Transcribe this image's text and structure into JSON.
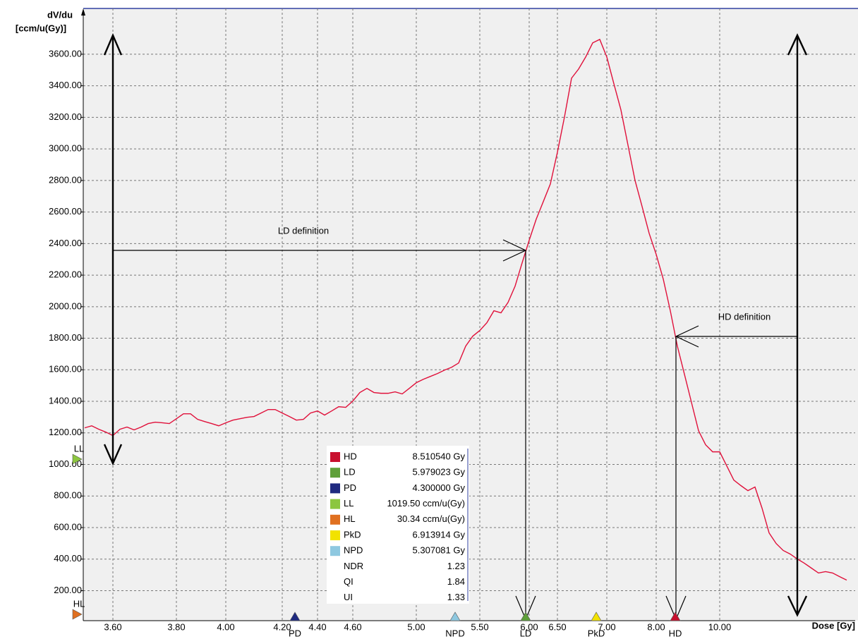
{
  "chart_data": {
    "type": "line",
    "y_title": "dV/du",
    "y_unit": "[ccm/u(Gy)]",
    "x_title": "Dose [Gy]",
    "ylim": [
      10,
      3890
    ],
    "yticks": [
      {
        "value": 200,
        "label": "200.00"
      },
      {
        "value": 400,
        "label": "400.00"
      },
      {
        "value": 600,
        "label": "600.00"
      },
      {
        "value": 800,
        "label": "800.00"
      },
      {
        "value": 1000,
        "label": "1000.00"
      },
      {
        "value": 1200,
        "label": "1200.00"
      },
      {
        "value": 1400,
        "label": "1400.00"
      },
      {
        "value": 1600,
        "label": "1600.00"
      },
      {
        "value": 1800,
        "label": "1800.00"
      },
      {
        "value": 2000,
        "label": "2000.00"
      },
      {
        "value": 2200,
        "label": "2200.00"
      },
      {
        "value": 2400,
        "label": "2400.00"
      },
      {
        "value": 2600,
        "label": "2600.00"
      },
      {
        "value": 2800,
        "label": "2800.00"
      },
      {
        "value": 3000,
        "label": "3000.00"
      },
      {
        "value": 3200,
        "label": "3200.00"
      },
      {
        "value": 3400,
        "label": "3400.00"
      },
      {
        "value": 3600,
        "label": "3600.00"
      }
    ],
    "grid": true,
    "categories": [
      null,
      null,
      null,
      null,
      "3.60",
      null,
      null,
      null,
      null,
      null,
      null,
      null,
      null,
      "3.80",
      null,
      null,
      null,
      null,
      null,
      null,
      "4.00",
      null,
      null,
      null,
      null,
      null,
      null,
      null,
      "4.20",
      null,
      null,
      null,
      null,
      "4.40",
      null,
      null,
      null,
      null,
      "4.60",
      null,
      null,
      null,
      null,
      null,
      null,
      null,
      null,
      "5.00",
      null,
      null,
      null,
      null,
      null,
      null,
      null,
      null,
      "5.50",
      null,
      null,
      null,
      null,
      null,
      null,
      "6.00",
      null,
      null,
      null,
      "6.50",
      null,
      null,
      null,
      null,
      null,
      null,
      "7.00",
      null,
      null,
      null,
      null,
      null,
      null,
      "8.00",
      null,
      null,
      null,
      null,
      null,
      null,
      null,
      null,
      "10.00",
      null,
      null,
      null,
      null,
      null,
      null,
      null,
      null,
      null,
      null,
      null,
      null,
      null,
      null,
      null,
      null,
      null,
      null
    ],
    "series": [
      {
        "name": "dV/du",
        "color": "#e0103a",
        "values": [
          1232,
          1245,
          1223,
          1205,
          1183,
          1223,
          1237,
          1219,
          1237,
          1259,
          1268,
          1264,
          1259,
          1290,
          1321,
          1321,
          1286,
          1272,
          1259,
          1245,
          1264,
          1281,
          1290,
          1299,
          1304,
          1326,
          1348,
          1348,
          1326,
          1304,
          1281,
          1286,
          1326,
          1339,
          1313,
          1339,
          1366,
          1362,
          1402,
          1456,
          1482,
          1456,
          1451,
          1451,
          1460,
          1447,
          1482,
          1518,
          1540,
          1558,
          1576,
          1598,
          1616,
          1643,
          1750,
          1813,
          1849,
          1898,
          1974,
          1961,
          2027,
          2130,
          2278,
          2421,
          2555,
          2666,
          2778,
          2979,
          3202,
          3448,
          3506,
          3582,
          3672,
          3694,
          3582,
          3413,
          3247,
          3024,
          2800,
          2635,
          2465,
          2331,
          2175,
          1974,
          1750,
          1572,
          1393,
          1214,
          1125,
          1080,
          1080,
          991,
          901,
          866,
          834,
          857,
          723,
          566,
          499,
          455,
          432,
          401,
          374,
          343,
          312,
          321,
          312,
          289,
          267
        ]
      }
    ],
    "annotations": [
      "LD definition",
      "HD definition"
    ],
    "markers": [
      {
        "name": "HD",
        "color": "#c8102e",
        "readout": "8.510540 Gy"
      },
      {
        "name": "LD",
        "color": "#5fa03a",
        "readout": "5.979023 Gy"
      },
      {
        "name": "PD",
        "color": "#1f2a80",
        "readout": "4.300000 Gy"
      },
      {
        "name": "LL",
        "color": "#8cc63f",
        "readout": "1019.50 ccm/u(Gy)"
      },
      {
        "name": "HL",
        "color": "#e07020",
        "readout": "30.34 ccm/u(Gy)"
      },
      {
        "name": "PkD",
        "color": "#f2e200",
        "readout": "6.913914 Gy"
      },
      {
        "name": "NPD",
        "color": "#8ec8e0",
        "readout": "5.307081 Gy"
      },
      {
        "name": "NDR",
        "readout": "1.23"
      },
      {
        "name": "QI",
        "readout": "1.84"
      },
      {
        "name": "UI",
        "readout": "1.33"
      }
    ]
  }
}
